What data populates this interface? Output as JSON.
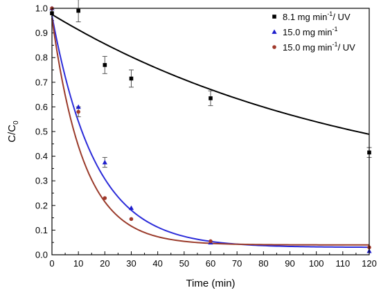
{
  "chart_data": {
    "type": "scatter",
    "xlabel": "Time (min)",
    "ylabel": {
      "main": "C/C",
      "sub": "0"
    },
    "xlim": [
      0,
      120
    ],
    "ylim": [
      0.0,
      1.0
    ],
    "xticks": [
      0,
      10,
      20,
      30,
      40,
      50,
      60,
      70,
      80,
      90,
      100,
      110,
      120
    ],
    "yticks": [
      "0.0",
      "0.1",
      "0.2",
      "0.3",
      "0.4",
      "0.5",
      "0.6",
      "0.7",
      "0.8",
      "0.9",
      "1.0"
    ],
    "grid": false,
    "legend_position": "top-right",
    "series": [
      {
        "name": "8.1 mg min⁻¹/ UV",
        "legend": {
          "pre": "8.1 mg min",
          "sup": "-1",
          "post": "/ UV"
        },
        "marker": "square",
        "color": "#000000",
        "fit_color": "#000000",
        "x": [
          0,
          10,
          20,
          30,
          60,
          120
        ],
        "y": [
          0.98,
          0.99,
          0.77,
          0.715,
          0.635,
          0.415
        ],
        "err": [
          0.0,
          0.045,
          0.035,
          0.035,
          0.03,
          0.02
        ],
        "fit": {
          "a": 0.975,
          "k": 0.0086,
          "c": 0.22
        }
      },
      {
        "name": "15.0 mg min⁻¹",
        "legend": {
          "pre": "15.0 mg min",
          "sup": "-1",
          "post": ""
        },
        "marker": "triangle",
        "color": "#1c1ccc",
        "fit_color": "#2b2bd9",
        "x": [
          0,
          10,
          20,
          30,
          60,
          120
        ],
        "y": [
          1.0,
          0.6,
          0.375,
          0.19,
          0.05,
          0.015
        ],
        "err": [
          0.0,
          0.0,
          0.02,
          0.0,
          0.0,
          0.0
        ],
        "fit": {
          "a": 0.97,
          "k": 0.061,
          "c": 0.03
        }
      },
      {
        "name": "15.0 mg min⁻¹/ UV",
        "legend": {
          "pre": "15.0 mg min",
          "sup": "-1",
          "post": "/ UV"
        },
        "marker": "circle",
        "color": "#a0392b",
        "fit_color": "#9a3a2a",
        "x": [
          0,
          10,
          20,
          30,
          60,
          120
        ],
        "y": [
          1.0,
          0.58,
          0.23,
          0.145,
          0.055,
          0.03
        ],
        "err": [
          0.0,
          0.02,
          0.0,
          0.0,
          0.0,
          0.0
        ],
        "fit": {
          "a": 0.96,
          "k": 0.083,
          "c": 0.04
        }
      }
    ]
  }
}
